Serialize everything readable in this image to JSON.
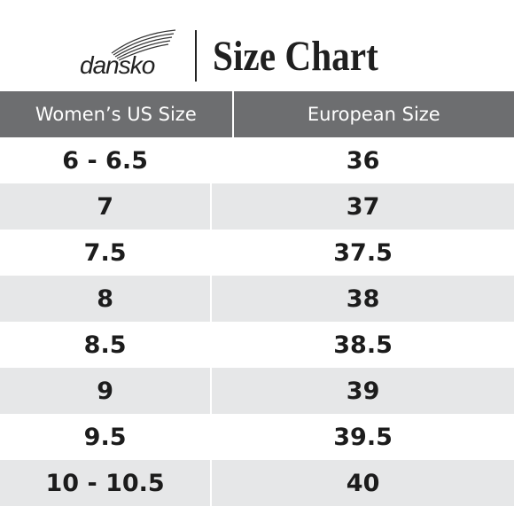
{
  "header": {
    "brand": "dansko",
    "title": "Size Chart"
  },
  "table": {
    "columns": [
      "Women’s US Size",
      "European Size"
    ],
    "rows": [
      [
        "6 - 6.5",
        "36"
      ],
      [
        "7",
        "37"
      ],
      [
        "7.5",
        "37.5"
      ],
      [
        "8",
        "38"
      ],
      [
        "8.5",
        "38.5"
      ],
      [
        "9",
        "39"
      ],
      [
        "9.5",
        "39.5"
      ],
      [
        "10 - 10.5",
        "40"
      ]
    ]
  }
}
